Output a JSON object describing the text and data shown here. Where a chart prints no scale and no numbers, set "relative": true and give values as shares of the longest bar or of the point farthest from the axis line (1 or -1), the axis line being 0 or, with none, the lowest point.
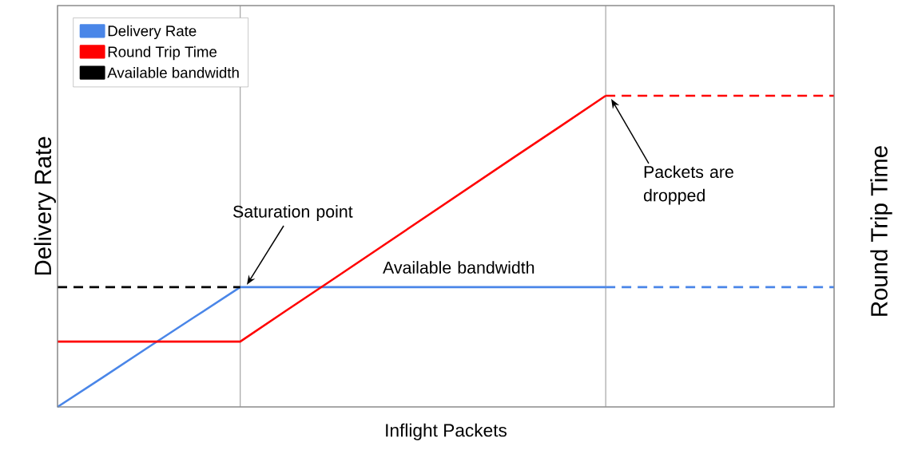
{
  "chart_data": {
    "type": "line",
    "relative": true,
    "xlabel": "Inflight Packets",
    "ylabel": "Delivery Rate",
    "y2label": "Round Trip Time",
    "categories": [
      null,
      null,
      null,
      null,
      null,
      null,
      null,
      null,
      null,
      null,
      null,
      null,
      null,
      null,
      null,
      null,
      null,
      null
    ],
    "series": [
      {
        "name": "Delivery Rate",
        "color": "#4a86e8",
        "line_style": "solid",
        "values": [
          0,
          0.096,
          0.193,
          0.289,
          0.385,
          0.385,
          0.385,
          0.385,
          0.385,
          0.385,
          0.385,
          0.385,
          0.385,
          null,
          null,
          null,
          null,
          null
        ]
      },
      {
        "name": "Round Trip Time",
        "color": "#ff0000",
        "line_style": "solid",
        "values": [
          0.21,
          0.21,
          0.21,
          0.21,
          0.21,
          0.309,
          0.407,
          0.506,
          0.605,
          0.704,
          0.803,
          0.901,
          1.0,
          null,
          null,
          null,
          null,
          null
        ]
      },
      {
        "name": "Available bandwidth",
        "color": "#000000",
        "line_style": "dashed",
        "values": [
          0.385,
          0.385,
          0.385,
          0.385,
          0.385,
          null,
          null,
          null,
          null,
          null,
          null,
          null,
          null,
          null,
          null,
          null,
          null,
          null
        ]
      },
      {
        "color": "#4a86e8",
        "line_style": "dashed",
        "values": [
          null,
          null,
          null,
          null,
          null,
          null,
          null,
          null,
          null,
          null,
          null,
          null,
          0.385,
          0.385,
          0.385,
          0.385,
          0.385,
          0.385
        ]
      },
      {
        "color": "#ff0000",
        "line_style": "dashed",
        "values": [
          null,
          null,
          null,
          null,
          null,
          null,
          null,
          null,
          null,
          null,
          null,
          null,
          1.0,
          1.0,
          1.0,
          1.0,
          1.0,
          1.0
        ]
      }
    ],
    "annotations": [
      "Saturation point",
      "Packets are dropped",
      "Available bandwidth"
    ],
    "legend": "top left",
    "marker": "none"
  }
}
